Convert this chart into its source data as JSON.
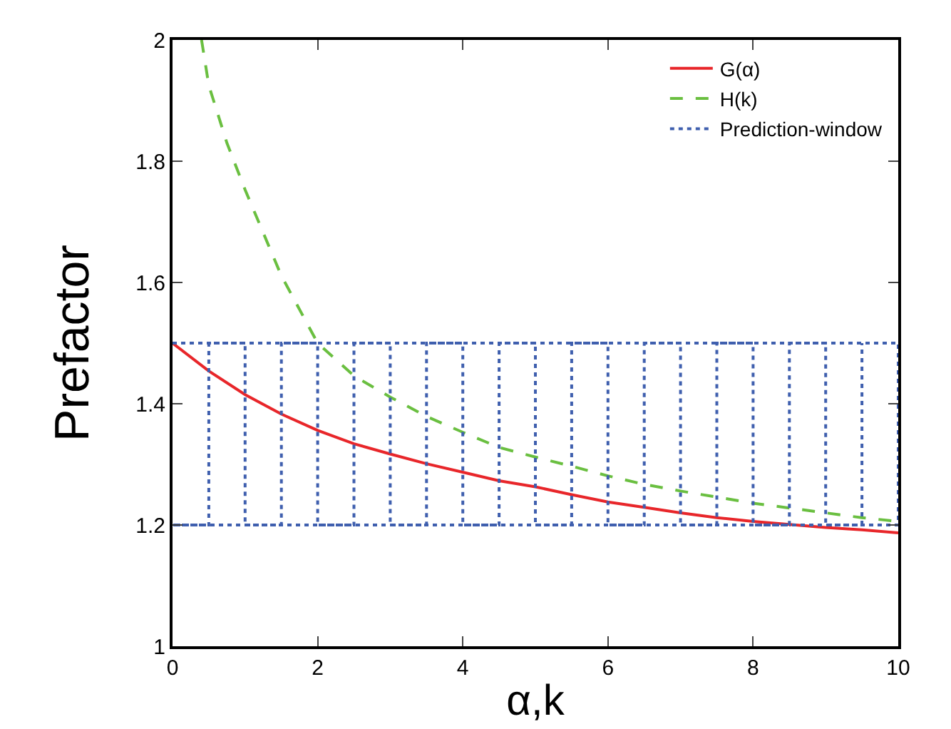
{
  "chart_data": {
    "type": "line",
    "xlabel": "α,k",
    "ylabel": "Prefactor",
    "xlim": [
      0,
      10
    ],
    "xticks": [
      0,
      2,
      4,
      6,
      8,
      10
    ],
    "ylim": [
      1,
      2
    ],
    "yticks": [
      1,
      1.2,
      1.4,
      1.6,
      1.8,
      2
    ],
    "grid": false,
    "legend": "top right",
    "marker": "none",
    "series": [
      {
        "name": "G(α)",
        "color": "#e8262a",
        "line_style": "solid",
        "x": [
          0,
          0.5,
          1,
          1.5,
          2,
          2.5,
          3,
          3.5,
          4,
          4.5,
          5,
          5.5,
          6,
          6.5,
          7,
          7.5,
          8,
          8.5,
          9,
          9.5,
          10
        ],
        "values": [
          1.5,
          1.454,
          1.415,
          1.383,
          1.356,
          1.334,
          1.317,
          1.301,
          1.287,
          1.273,
          1.263,
          1.25,
          1.238,
          1.229,
          1.22,
          1.212,
          1.206,
          1.201,
          1.196,
          1.192,
          1.187
        ]
      },
      {
        "name": "H(k)",
        "color": "#6abf40",
        "line_style": "dashed",
        "x": [
          0.4,
          0.5,
          0.75,
          1,
          1.5,
          2,
          2.5,
          3,
          3.5,
          4,
          4.5,
          5,
          5.5,
          6,
          6.5,
          7,
          7.5,
          8,
          8.5,
          9,
          9.5,
          10
        ],
        "values": [
          2,
          1.925,
          1.83,
          1.753,
          1.611,
          1.5,
          1.446,
          1.411,
          1.379,
          1.353,
          1.328,
          1.312,
          1.297,
          1.281,
          1.267,
          1.256,
          1.246,
          1.236,
          1.228,
          1.22,
          1.212,
          1.206
        ]
      },
      {
        "name": "Prediction-window",
        "color": "#3f5fae",
        "line_style": "dotted",
        "x": [
          0,
          10,
          10,
          0,
          0.5,
          0.5,
          1,
          1,
          1.5,
          1.5,
          2,
          2,
          2.5,
          2.5,
          3,
          3,
          3.5,
          3.5,
          4,
          4,
          4.5,
          4.5,
          5,
          5,
          5.5,
          5.5,
          6,
          6,
          6.5,
          6.5,
          7,
          7,
          7.5,
          7.5,
          8,
          8,
          8.5,
          8.5,
          9,
          9,
          9.5,
          9.5
        ],
        "values": [
          1.5,
          1.5,
          1.2,
          1.2,
          1.2,
          1.5,
          1.5,
          1.2,
          1.2,
          1.5,
          1.5,
          1.2,
          1.2,
          1.5,
          1.5,
          1.2,
          1.2,
          1.5,
          1.5,
          1.2,
          1.2,
          1.5,
          1.5,
          1.2,
          1.2,
          1.5,
          1.5,
          1.2,
          1.2,
          1.5,
          1.5,
          1.2,
          1.2,
          1.5,
          1.5,
          1.2,
          1.2,
          1.5,
          1.5,
          1.2,
          1.2,
          1.5
        ]
      }
    ]
  }
}
